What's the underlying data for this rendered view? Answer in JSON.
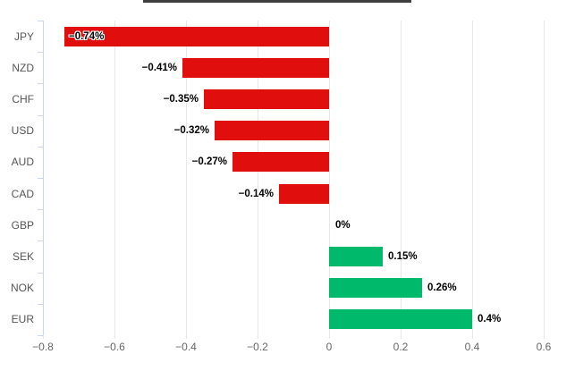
{
  "header": {
    "title_underline_color": "#3f3f3f"
  },
  "chart_data": {
    "type": "bar",
    "orientation": "horizontal",
    "title": "",
    "xlabel": "",
    "ylabel": "",
    "categories": [
      "JPY",
      "NZD",
      "CHF",
      "USD",
      "AUD",
      "CAD",
      "GBP",
      "SEK",
      "NOK",
      "EUR"
    ],
    "values": [
      -0.74,
      -0.41,
      -0.35,
      -0.32,
      -0.27,
      -0.14,
      0,
      0.15,
      0.26,
      0.4
    ],
    "value_labels": [
      "−0.74%",
      "−0.41%",
      "−0.35%",
      "−0.32%",
      "−0.27%",
      "−0.14%",
      "0%",
      "0.15%",
      "0.26%",
      "0.4%"
    ],
    "xlim": [
      -0.8,
      0.6
    ],
    "x_tick_values": [
      -0.8,
      -0.6,
      -0.4,
      -0.2,
      0,
      0.2,
      0.4,
      0.6
    ],
    "x_tick_labels": [
      "−0.8",
      "−0.6",
      "−0.4",
      "−0.2",
      "0",
      "0.2",
      "0.4",
      "0.6"
    ],
    "grid": true,
    "legend": "none",
    "colors": {
      "negative": "#e10e0e",
      "positive": "#00b96b"
    }
  },
  "style": {
    "gridline_color": "#e7e7e7",
    "axis_line_color": "#ccd6eb",
    "category_label_color": "#555555",
    "tick_label_color": "#666666",
    "data_label_color": "#000000",
    "background": "#ffffff"
  }
}
